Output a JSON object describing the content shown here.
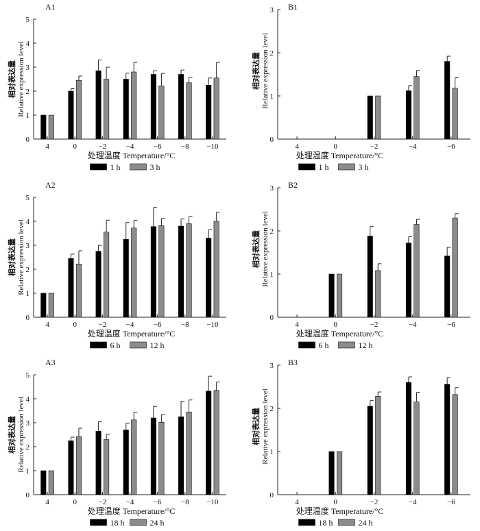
{
  "colors": {
    "series1": "#000000",
    "series2": "#8c8c8c"
  },
  "chart_data": [
    {
      "type": "bar",
      "panel_label": "A1",
      "categories": [
        "4",
        "0",
        "−2",
        "−4",
        "−6",
        "−8",
        "−10"
      ],
      "series": [
        {
          "name": "1 h",
          "values": [
            1,
            2.0,
            2.85,
            2.5,
            2.7,
            2.7,
            2.25
          ],
          "errors": [
            0,
            0.1,
            0.45,
            0.25,
            0.15,
            0.18,
            0.3
          ]
        },
        {
          "name": "3 h",
          "values": [
            1,
            2.45,
            2.5,
            2.8,
            2.22,
            2.35,
            2.55
          ],
          "errors": [
            0,
            0.18,
            0.5,
            0.4,
            0.52,
            0.22,
            0.65
          ]
        }
      ],
      "title": "",
      "ylabel_cn": "相对表达量",
      "ylabel": "Relative expression level",
      "xlabel": "处理温度 Temperature/°C",
      "ylim": [
        0,
        5
      ],
      "yticks": [
        0,
        1,
        2,
        3,
        4,
        5
      ],
      "legend_position": "bottom-center"
    },
    {
      "type": "bar",
      "panel_label": "B1",
      "categories": [
        "4",
        "0",
        "−2",
        "−4",
        "−6"
      ],
      "series": [
        {
          "name": "1 h",
          "values": [
            null,
            null,
            1,
            1.12,
            1.8
          ],
          "errors": [
            0,
            0,
            0,
            0.12,
            0.12
          ]
        },
        {
          "name": "3 h",
          "values": [
            null,
            null,
            1,
            1.45,
            1.18
          ],
          "errors": [
            0,
            0,
            0,
            0.14,
            0.24
          ]
        }
      ],
      "title": "",
      "ylabel_cn": "相对表达量",
      "ylabel": "Relative expression level",
      "xlabel": "处理温度 Temperature/°C",
      "ylim": [
        0,
        3
      ],
      "yticks": [
        0,
        1,
        2,
        3
      ],
      "legend_position": "bottom-center"
    },
    {
      "type": "bar",
      "panel_label": "A2",
      "categories": [
        "4",
        "0",
        "−2",
        "−4",
        "−6",
        "−8",
        "−10"
      ],
      "series": [
        {
          "name": "6 h",
          "values": [
            1,
            2.45,
            2.75,
            3.25,
            3.78,
            3.8,
            3.3
          ],
          "errors": [
            0,
            0.18,
            0.25,
            0.7,
            0.8,
            0.3,
            0.35
          ]
        },
        {
          "name": "12 h",
          "values": [
            1,
            2.22,
            3.55,
            3.72,
            3.82,
            3.9,
            4.0
          ],
          "errors": [
            0,
            0.55,
            0.5,
            0.32,
            0.3,
            0.3,
            0.38
          ]
        }
      ],
      "title": "",
      "ylabel_cn": "相对表达量",
      "ylabel": "Relative expression level",
      "xlabel": "处理温度 Temperature/°C",
      "ylim": [
        0,
        5
      ],
      "yticks": [
        0,
        1,
        2,
        3,
        4,
        5
      ],
      "legend_position": "bottom-center"
    },
    {
      "type": "bar",
      "panel_label": "B2",
      "categories": [
        "4",
        "0",
        "−2",
        "−4",
        "−6"
      ],
      "series": [
        {
          "name": "6 h",
          "values": [
            null,
            1,
            1.88,
            1.72,
            1.42
          ],
          "errors": [
            0,
            0,
            0.22,
            0.15,
            0.2
          ]
        },
        {
          "name": "12 h",
          "values": [
            null,
            1,
            1.08,
            2.15,
            2.3
          ],
          "errors": [
            0,
            0,
            0.16,
            0.12,
            0.1
          ]
        }
      ],
      "title": "",
      "ylabel_cn": "相对表达量",
      "ylabel": "Relative expression level",
      "xlabel": "处理温度 Temperature/°C",
      "ylim": [
        0,
        3
      ],
      "yticks": [
        0,
        1,
        2,
        3
      ],
      "legend_position": "bottom-center"
    },
    {
      "type": "bar",
      "panel_label": "A3",
      "categories": [
        "4",
        "0",
        "−2",
        "−4",
        "−6",
        "−8",
        "−10"
      ],
      "series": [
        {
          "name": "18 h",
          "values": [
            1,
            2.25,
            2.65,
            2.7,
            3.2,
            3.25,
            4.32
          ],
          "errors": [
            0,
            0.15,
            0.4,
            0.28,
            0.48,
            0.65,
            0.62
          ]
        },
        {
          "name": "24 h",
          "values": [
            1,
            2.42,
            2.3,
            3.12,
            3.02,
            3.45,
            4.35
          ],
          "errors": [
            0,
            0.35,
            0.22,
            0.32,
            0.32,
            0.5,
            0.35
          ]
        }
      ],
      "title": "",
      "ylabel_cn": "相对表达量",
      "ylabel": "Relative expression level",
      "xlabel": "处理温度 Temperature/°C",
      "ylim": [
        0,
        5
      ],
      "yticks": [
        0,
        1,
        2,
        3,
        4,
        5
      ],
      "legend_position": "bottom-center"
    },
    {
      "type": "bar",
      "panel_label": "B3",
      "categories": [
        "4",
        "0",
        "−2",
        "−4",
        "−6"
      ],
      "series": [
        {
          "name": "18 h",
          "values": [
            null,
            1,
            2.05,
            2.6,
            2.56
          ],
          "errors": [
            0,
            0,
            0.13,
            0.13,
            0.15
          ]
        },
        {
          "name": "24 h",
          "values": [
            null,
            1,
            2.28,
            2.15,
            2.32
          ],
          "errors": [
            0,
            0,
            0.1,
            0.22,
            0.16
          ]
        }
      ],
      "title": "",
      "ylabel_cn": "相对表达量",
      "ylabel": "Relative expression level",
      "xlabel": "处理温度 Temperature/°C",
      "ylim": [
        0,
        3
      ],
      "yticks": [
        0,
        1,
        2,
        3
      ],
      "legend_position": "bottom-center"
    }
  ]
}
